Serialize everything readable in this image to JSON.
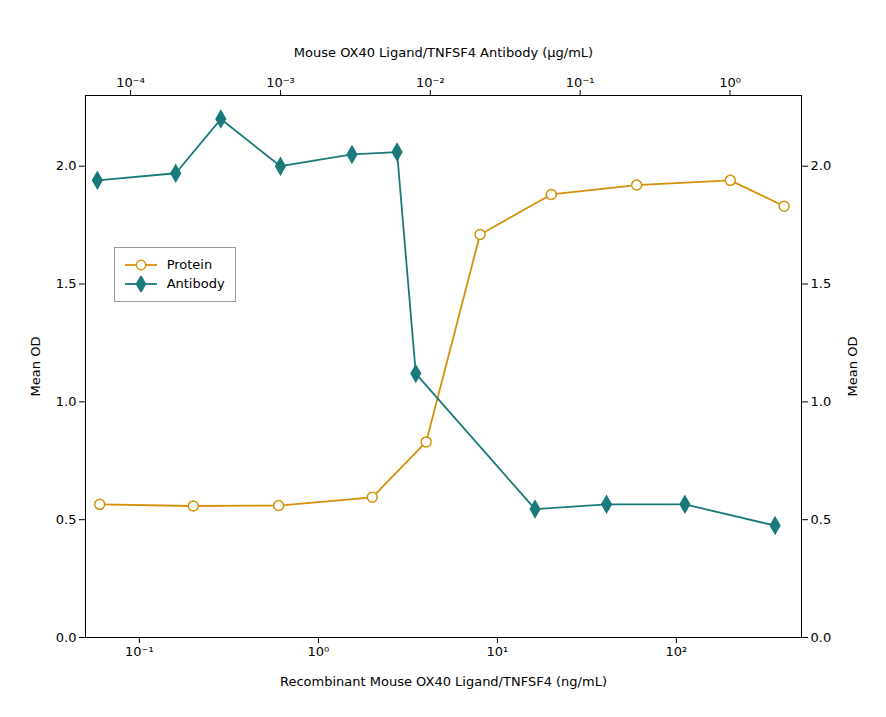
{
  "chart_data": {
    "type": "line",
    "xlabel": "Recombinant Mouse OX40 Ligand/TNFSF4 (ng/mL)",
    "x2label": "Mouse OX40 Ligand/TNFSF4 Antibody (μg/mL)",
    "ylabel": "Mean OD",
    "y2label": "Mean OD",
    "log": "x",
    "xlim": [
      0.05,
      500.0
    ],
    "xticks": [
      {
        "value": 0.1,
        "label": "10⁻¹"
      },
      {
        "value": 1,
        "label": "10⁰"
      },
      {
        "value": 10,
        "label": "10¹"
      },
      {
        "value": 100,
        "label": "10²"
      }
    ],
    "x2lim": [
      5e-05,
      3.0
    ],
    "x2ticks": [
      {
        "value": 0.0001,
        "label": "10⁻⁴"
      },
      {
        "value": 0.001,
        "label": "10⁻³"
      },
      {
        "value": 0.01,
        "label": "10⁻²"
      },
      {
        "value": 0.1,
        "label": "10⁻¹"
      },
      {
        "value": 1,
        "label": "10⁰"
      }
    ],
    "ylim": [
      0.0,
      2.3
    ],
    "yticks": [
      {
        "value": 0,
        "label": "0.0"
      },
      0.5,
      {
        "value": 1,
        "label": "1.0"
      },
      1.5,
      {
        "value": 2,
        "label": "2.0"
      }
    ],
    "y2lim": [
      0.0,
      2.3
    ],
    "y2ticks": [
      {
        "value": 0,
        "label": "0.0"
      },
      0.5,
      {
        "value": 1,
        "label": "1.0"
      },
      1.5,
      {
        "value": 2,
        "label": "2.0"
      }
    ],
    "grid": false,
    "legend": "upper left",
    "series": [
      {
        "name": "Protein",
        "color": "#D4900A",
        "marker": "open_circle",
        "axis": "x",
        "x": [
          0.06,
          0.2,
          0.6,
          2.0,
          4.0,
          8.0,
          20.0,
          60.0,
          200.0,
          400.0
        ],
        "values": [
          0.565,
          0.558,
          0.56,
          0.595,
          0.83,
          1.71,
          1.88,
          1.92,
          1.94,
          1.83
        ]
      },
      {
        "name": "Antibody",
        "color": "#1A7A7A",
        "marker": "diamond",
        "axis": "x2",
        "x": [
          6e-05,
          0.0002,
          0.0004,
          0.001,
          0.003,
          0.006,
          0.008,
          0.05,
          0.15,
          0.5,
          2.0
        ],
        "values": [
          1.94,
          1.97,
          2.2,
          2.0,
          2.05,
          2.06,
          1.12,
          0.545,
          0.565,
          0.565,
          0.475
        ]
      }
    ]
  }
}
